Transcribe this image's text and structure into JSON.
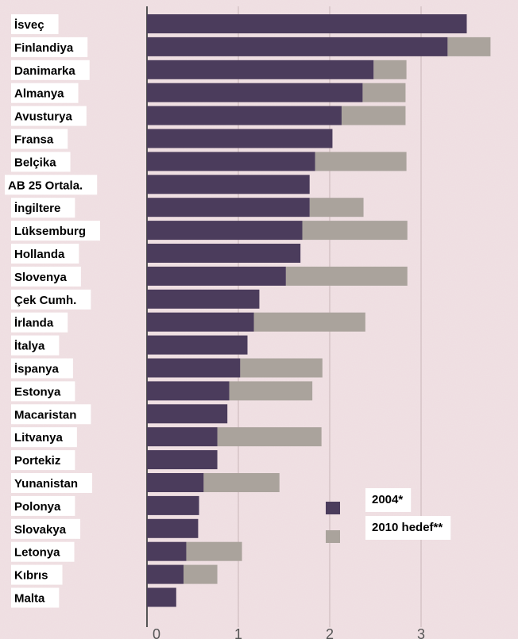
{
  "chart_data": {
    "type": "bar",
    "orientation": "horizontal",
    "categories": [
      "İsveç",
      "Finlandiya",
      "Danimarka",
      "Almanya",
      "Avusturya",
      "Fransa",
      "Belçika",
      "AB 25 Ortala.",
      "İngiltere",
      "Lüksemburg",
      "Hollanda",
      "Slovenya",
      "Çek Cumh.",
      "İrlanda",
      "İtalya",
      "İspanya",
      "Estonya",
      "Macaristan",
      "Litvanya",
      "Portekiz",
      "Yunanistan",
      "Polonya",
      "Slovakya",
      "Letonya",
      "Kıbrıs",
      "Malta"
    ],
    "series": [
      {
        "name": "2004*",
        "color": "#4b3c5c",
        "values": [
          3.5,
          3.29,
          2.48,
          2.36,
          2.13,
          2.03,
          1.84,
          1.78,
          1.78,
          1.7,
          1.68,
          1.52,
          1.23,
          1.17,
          1.1,
          1.02,
          0.9,
          0.88,
          0.77,
          0.77,
          0.62,
          0.57,
          0.56,
          0.43,
          0.4,
          0.32
        ]
      },
      {
        "name": "2010 hedef**",
        "color": "#aaa39c",
        "values": [
          null,
          3.76,
          2.84,
          2.83,
          2.83,
          null,
          2.84,
          null,
          2.37,
          2.85,
          null,
          2.85,
          null,
          2.39,
          null,
          1.92,
          1.81,
          null,
          1.91,
          null,
          1.45,
          null,
          null,
          1.04,
          0.77,
          null
        ]
      }
    ],
    "xlim": [
      0,
      3.8
    ],
    "xticks": [
      0,
      1,
      2,
      3
    ],
    "grid": true
  }
}
